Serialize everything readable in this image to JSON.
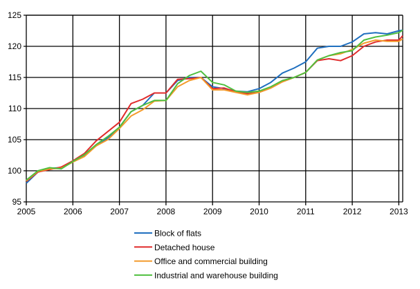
{
  "chart_data": {
    "type": "line",
    "title": "",
    "xlabel": "",
    "ylabel": "",
    "xlim": [
      "2005-01",
      "2013-02"
    ],
    "ylim": [
      95,
      125
    ],
    "x_ticks": [
      "2005",
      "2006",
      "2007",
      "2008",
      "2009",
      "2010",
      "2011",
      "2012",
      "2013"
    ],
    "y_ticks": [
      "95",
      "100",
      "105",
      "110",
      "115",
      "120",
      "125"
    ],
    "grid": true,
    "legend_position": "bottom",
    "x": [
      "2005-01",
      "2005-04",
      "2005-07",
      "2005-10",
      "2006-01",
      "2006-04",
      "2006-07",
      "2006-10",
      "2007-01",
      "2007-04",
      "2007-07",
      "2007-10",
      "2008-01",
      "2008-04",
      "2008-07",
      "2008-10",
      "2009-01",
      "2009-04",
      "2009-07",
      "2009-10",
      "2010-01",
      "2010-04",
      "2010-07",
      "2010-10",
      "2011-01",
      "2011-04",
      "2011-07",
      "2011-10",
      "2012-01",
      "2012-04",
      "2012-07",
      "2012-10",
      "2013-01",
      "2013-02"
    ],
    "series": [
      {
        "name": "Block of flats",
        "color": "#1f6fbf",
        "values": [
          98.0,
          99.8,
          100.4,
          100.5,
          101.5,
          102.5,
          104.0,
          105.3,
          107.0,
          109.5,
          110.5,
          112.5,
          112.5,
          114.5,
          115.0,
          115.0,
          113.5,
          113.2,
          112.8,
          112.7,
          113.2,
          114.2,
          115.7,
          116.5,
          117.5,
          119.7,
          120.0,
          120.0,
          120.7,
          122.0,
          122.2,
          122.0,
          122.5,
          122.6
        ]
      },
      {
        "name": "Detached house",
        "color": "#e02b2b",
        "values": [
          98.3,
          99.8,
          100.2,
          100.6,
          101.6,
          102.8,
          104.8,
          106.3,
          107.8,
          110.8,
          111.5,
          112.5,
          112.5,
          114.7,
          114.8,
          115.0,
          113.2,
          113.3,
          112.7,
          112.4,
          112.6,
          113.3,
          114.3,
          115.0,
          115.8,
          117.7,
          118.0,
          117.7,
          118.5,
          120.0,
          120.7,
          121.0,
          121.0,
          121.7
        ]
      },
      {
        "name": "Office and commercial building",
        "color": "#f39a2b",
        "values": [
          98.4,
          99.9,
          100.3,
          100.4,
          101.4,
          102.3,
          104.0,
          105.0,
          106.8,
          108.8,
          109.8,
          111.2,
          111.3,
          113.5,
          114.5,
          115.0,
          113.0,
          113.0,
          112.6,
          112.2,
          112.6,
          113.3,
          114.3,
          115.0,
          115.8,
          117.8,
          118.5,
          118.8,
          119.5,
          120.5,
          121.0,
          120.8,
          120.8,
          121.2
        ]
      },
      {
        "name": "Industrial and warehouse  building",
        "color": "#4fbf3f",
        "values": [
          98.5,
          100.0,
          100.5,
          100.3,
          101.5,
          102.6,
          104.2,
          105.5,
          107.0,
          109.5,
          110.5,
          111.3,
          111.3,
          114.0,
          115.3,
          116.0,
          114.2,
          113.8,
          112.8,
          112.6,
          112.8,
          113.5,
          114.5,
          115.0,
          115.8,
          117.8,
          118.5,
          119.0,
          119.3,
          121.0,
          121.5,
          121.8,
          122.2,
          122.6
        ]
      }
    ]
  }
}
